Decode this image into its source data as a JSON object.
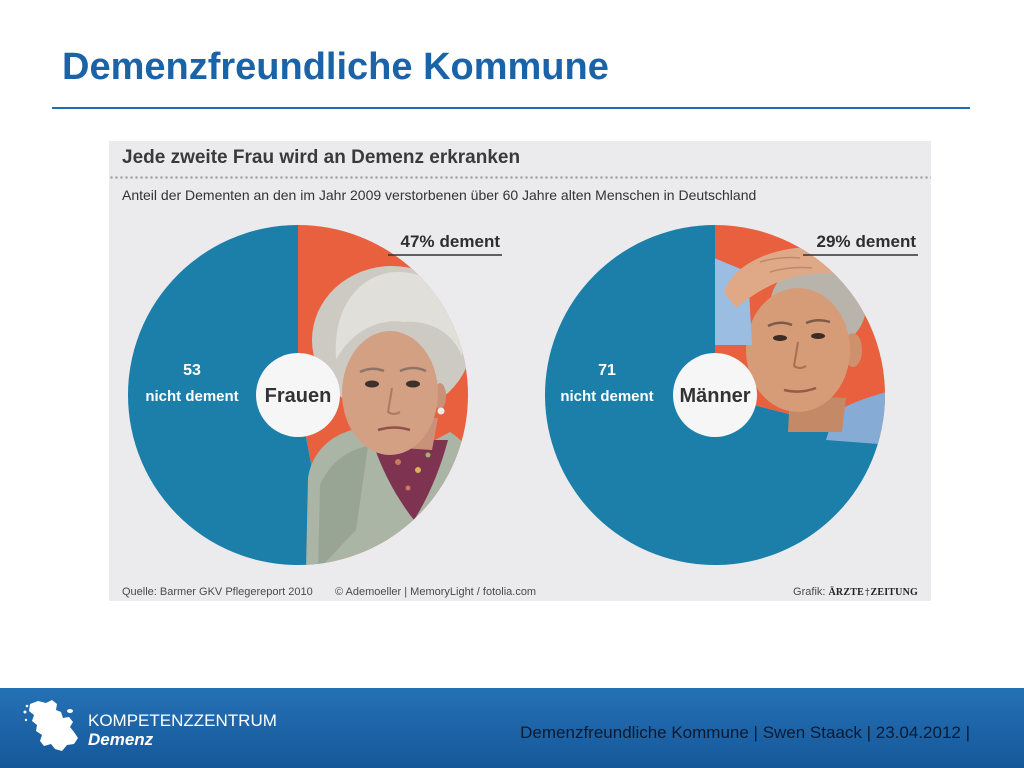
{
  "slide": {
    "title": "Demenzfreundliche Kommune",
    "footer_text": "Demenzfreundliche Kommune | Swen Staack | 23.04.2012 |"
  },
  "logo": {
    "icon": "schleswig-holstein-map-icon",
    "line1": "KOMPETENZZENTRUM",
    "line2": "Demenz"
  },
  "colors": {
    "brand_blue": "#1a63a8",
    "footer_text": "#0b1a33",
    "panel_background": "#ebebed",
    "dement": "#e8603e",
    "nicht_dement": "#1b7fa9"
  },
  "infographic": {
    "title": "Jede zweite Frau wird an Demenz erkranken",
    "subtitle": "Anteil der Dementen an den im Jahr 2009 verstorbenen über 60 Jahre alten Menschen in Deutschland",
    "source": "Quelle: Barmer GKV Pflegereport 2010",
    "photo_credit": "© Ademoeller | MemoryLight / fotolia.com",
    "grafik_label": "Grafik:",
    "grafik_brand_1": "ÄRZTE",
    "grafik_brand_2": "ZEITUNG"
  },
  "chart_data": [
    {
      "type": "pie",
      "center_label": "Frauen",
      "slices": [
        {
          "name": "dement",
          "value": 47,
          "value_label": "47%",
          "color": "#e8603e"
        },
        {
          "name": "nicht dement",
          "value": 53,
          "value_label": "53",
          "color": "#1b7fa9"
        }
      ]
    },
    {
      "type": "pie",
      "center_label": "Männer",
      "slices": [
        {
          "name": "dement",
          "value": 29,
          "value_label": "29%",
          "color": "#e8603e"
        },
        {
          "name": "nicht dement",
          "value": 71,
          "value_label": "71",
          "color": "#1b7fa9"
        }
      ]
    }
  ]
}
